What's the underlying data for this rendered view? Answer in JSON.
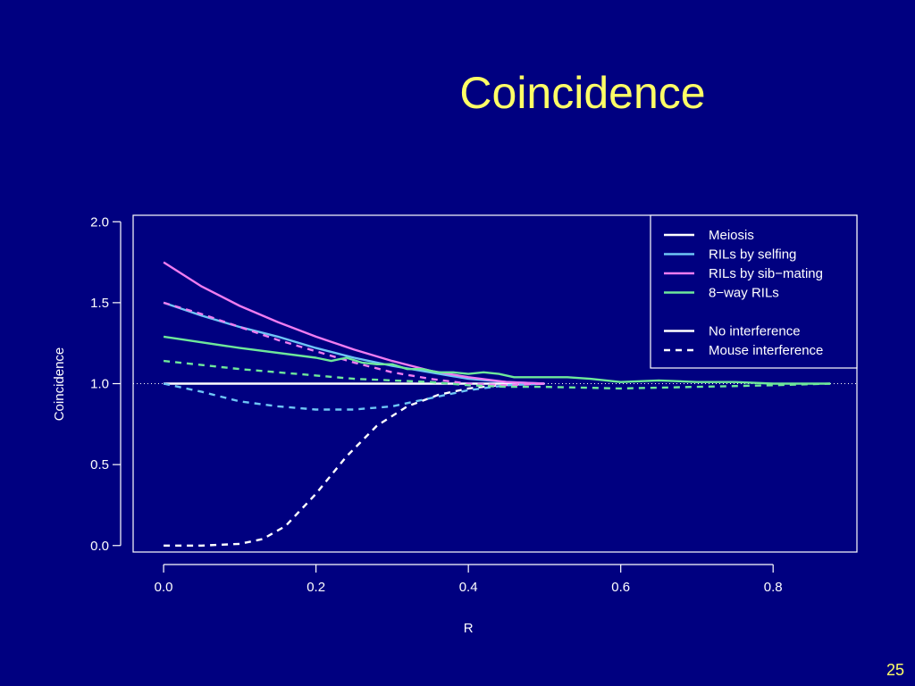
{
  "slide": {
    "title": "Coincidence",
    "page_number": "25"
  },
  "colors": {
    "background": "#000080",
    "title": "#ffff66",
    "axis": "#ffffff",
    "meiosis": "#ffffff",
    "selfing": "#6ec6f5",
    "sib_mating": "#f07cf0",
    "eight_way": "#6ee89a"
  },
  "chart_data": {
    "type": "line",
    "xlabel": "R",
    "ylabel": "Coincidence",
    "xlim": [
      -0.04,
      0.91
    ],
    "ylim": [
      -0.04,
      2.04
    ],
    "x_ticks": [
      "0.0",
      "0.2",
      "0.4",
      "0.6",
      "0.8"
    ],
    "y_ticks": [
      "0.0",
      "0.5",
      "1.0",
      "1.5",
      "2.0"
    ],
    "reference_line": {
      "y": 1.0,
      "style": "dotted"
    },
    "legend": {
      "position": "top-right",
      "entries": [
        {
          "label": "Meiosis",
          "color": "#ffffff",
          "style": "solid"
        },
        {
          "label": "RILs by selfing",
          "color": "#6ec6f5",
          "style": "solid"
        },
        {
          "label": "RILs by sib−mating",
          "color": "#f07cf0",
          "style": "solid"
        },
        {
          "label": "8−way RILs",
          "color": "#6ee89a",
          "style": "solid"
        },
        {
          "label": "",
          "color": "",
          "style": "blank"
        },
        {
          "label": "No interference",
          "color": "#ffffff",
          "style": "solid"
        },
        {
          "label": "Mouse interference",
          "color": "#ffffff",
          "style": "dashed"
        }
      ]
    },
    "series": [
      {
        "key": "meiosis_none",
        "color": "#ffffff",
        "dash": false,
        "x": [
          0.0,
          0.5
        ],
        "y": [
          1.0,
          1.0
        ]
      },
      {
        "key": "meiosis_mouse",
        "color": "#ffffff",
        "dash": true,
        "x": [
          0.0,
          0.05,
          0.1,
          0.13,
          0.16,
          0.2,
          0.24,
          0.28,
          0.32,
          0.36,
          0.4,
          0.44,
          0.48,
          0.5
        ],
        "y": [
          0.0,
          0.0,
          0.01,
          0.04,
          0.12,
          0.32,
          0.55,
          0.74,
          0.86,
          0.93,
          0.97,
          0.99,
          1.0,
          1.0
        ]
      },
      {
        "key": "selfing_none",
        "color": "#6ec6f5",
        "dash": false,
        "x": [
          0.0,
          0.05,
          0.1,
          0.15,
          0.2,
          0.25,
          0.3,
          0.35,
          0.4,
          0.45,
          0.5
        ],
        "y": [
          1.5,
          1.42,
          1.35,
          1.29,
          1.22,
          1.16,
          1.11,
          1.07,
          1.03,
          1.01,
          1.0
        ]
      },
      {
        "key": "selfing_mouse",
        "color": "#6ec6f5",
        "dash": true,
        "x": [
          0.0,
          0.05,
          0.1,
          0.15,
          0.2,
          0.25,
          0.3,
          0.35,
          0.4,
          0.45,
          0.5
        ],
        "y": [
          1.0,
          0.95,
          0.89,
          0.86,
          0.84,
          0.84,
          0.86,
          0.91,
          0.96,
          0.99,
          1.0
        ]
      },
      {
        "key": "sib_none",
        "color": "#f07cf0",
        "dash": false,
        "x": [
          0.0,
          0.05,
          0.1,
          0.15,
          0.2,
          0.25,
          0.3,
          0.35,
          0.4,
          0.45,
          0.5
        ],
        "y": [
          1.75,
          1.6,
          1.48,
          1.38,
          1.29,
          1.21,
          1.14,
          1.08,
          1.04,
          1.01,
          1.0
        ]
      },
      {
        "key": "sib_mouse",
        "color": "#f07cf0",
        "dash": true,
        "x": [
          0.0,
          0.05,
          0.1,
          0.15,
          0.2,
          0.25,
          0.3,
          0.35,
          0.4,
          0.45,
          0.5
        ],
        "y": [
          1.5,
          1.43,
          1.35,
          1.27,
          1.2,
          1.13,
          1.07,
          1.03,
          1.0,
          0.99,
          1.0
        ]
      },
      {
        "key": "eightway_none",
        "color": "#6ee89a",
        "dash": false,
        "x": [
          0.0,
          0.1,
          0.2,
          0.22,
          0.24,
          0.26,
          0.28,
          0.3,
          0.32,
          0.34,
          0.36,
          0.38,
          0.4,
          0.42,
          0.44,
          0.46,
          0.48,
          0.5,
          0.53,
          0.56,
          0.6,
          0.65,
          0.7,
          0.75,
          0.8,
          0.85,
          0.875
        ],
        "y": [
          1.29,
          1.22,
          1.16,
          1.14,
          1.16,
          1.13,
          1.12,
          1.12,
          1.09,
          1.09,
          1.07,
          1.07,
          1.06,
          1.07,
          1.06,
          1.04,
          1.04,
          1.04,
          1.04,
          1.03,
          1.01,
          1.02,
          1.01,
          1.01,
          1.0,
          1.0,
          1.0
        ]
      },
      {
        "key": "eightway_mouse",
        "color": "#6ee89a",
        "dash": true,
        "x": [
          0.0,
          0.1,
          0.2,
          0.25,
          0.3,
          0.35,
          0.4,
          0.45,
          0.5,
          0.6,
          0.7,
          0.8,
          0.875
        ],
        "y": [
          1.14,
          1.09,
          1.05,
          1.03,
          1.02,
          1.01,
          0.99,
          0.98,
          0.98,
          0.97,
          0.98,
          0.99,
          1.0
        ]
      }
    ]
  }
}
